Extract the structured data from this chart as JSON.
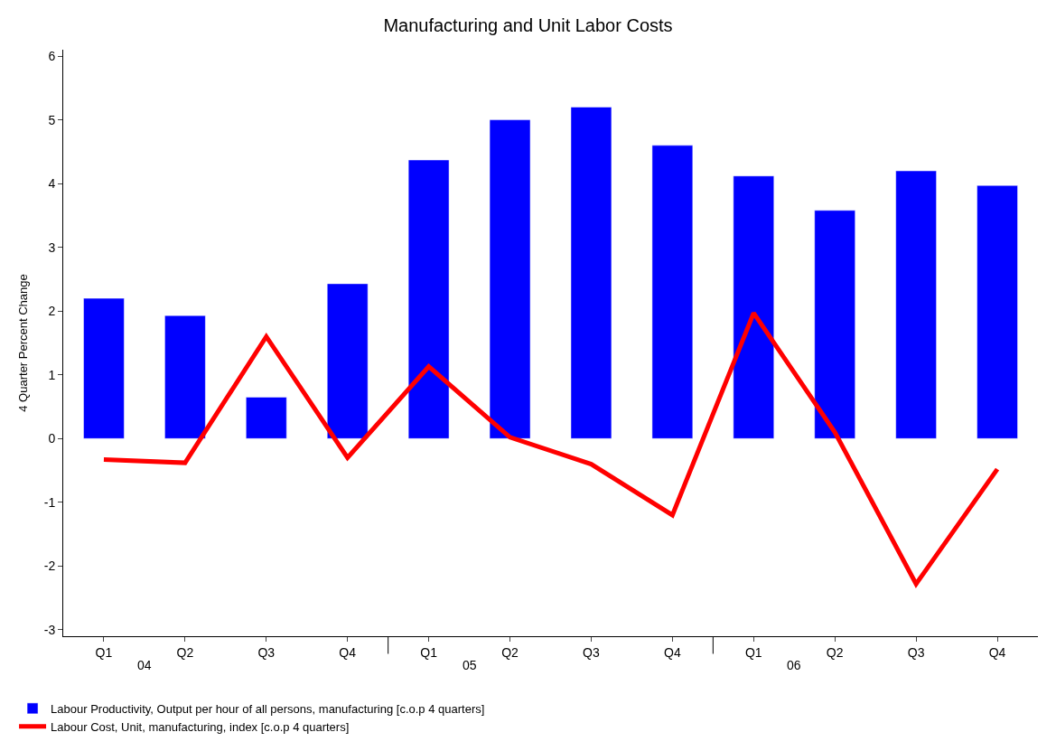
{
  "chart_data": {
    "type": "bar",
    "title": "Manufacturing and Unit Labor Costs",
    "ylabel": "4 Quarter Percent Change",
    "categories": [
      "Q1",
      "Q2",
      "Q3",
      "Q4",
      "Q1",
      "Q2",
      "Q3",
      "Q4",
      "Q1",
      "Q2",
      "Q3",
      "Q4"
    ],
    "annotations": [
      "04",
      "05",
      "06"
    ],
    "series": [
      {
        "name": "Labour Productivity, Output per hour of all persons, manufacturing [c.o.p 4 quarters]",
        "color": "#0000ff",
        "values": [
          2.2,
          1.93,
          0.65,
          2.43,
          4.37,
          5.0,
          5.2,
          4.6,
          4.12,
          3.58,
          4.2,
          3.97
        ]
      },
      {
        "name": "Labour Cost, Unit, manufacturing, index [c.o.p 4 quarters]",
        "type": "line",
        "color": "#ff0000",
        "values": [
          -0.33,
          -0.38,
          1.6,
          -0.3,
          1.13,
          0.02,
          -0.4,
          -1.2,
          1.97,
          0.1,
          -2.28,
          -0.48
        ]
      }
    ],
    "ylim": [
      -3.1,
      6.1
    ],
    "yticks": [
      -3,
      -2,
      -1,
      0,
      1,
      2,
      3,
      4,
      5,
      6
    ],
    "grid": false,
    "legend": "bottom left",
    "marker": "none",
    "line_style": "solid"
  }
}
